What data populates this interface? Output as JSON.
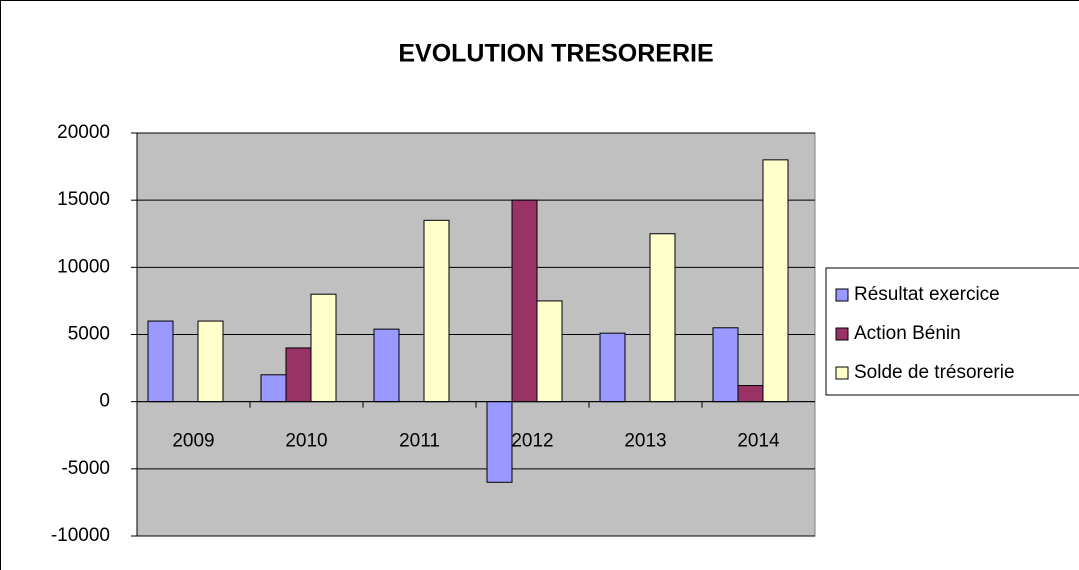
{
  "chart_data": {
    "type": "bar",
    "title": "EVOLUTION TRESORERIE",
    "categories": [
      "2009",
      "2010",
      "2011",
      "2012",
      "2013",
      "2014"
    ],
    "series": [
      {
        "name": "Résultat exercice",
        "color": "#9999ff",
        "values": [
          6000,
          2000,
          5400,
          -6000,
          5100,
          5500
        ]
      },
      {
        "name": "Action Bénin",
        "color": "#993366",
        "values": [
          null,
          4000,
          null,
          15000,
          null,
          1200
        ]
      },
      {
        "name": "Solde de trésorerie",
        "color": "#ffffcc",
        "values": [
          6000,
          8000,
          13500,
          7500,
          12500,
          18000
        ]
      }
    ],
    "ylim": [
      -10000,
      20000
    ],
    "yticks": [
      -10000,
      -5000,
      0,
      5000,
      10000,
      15000,
      20000
    ],
    "grid": true,
    "legend": "right",
    "plot_background": "#c0c0c0"
  }
}
